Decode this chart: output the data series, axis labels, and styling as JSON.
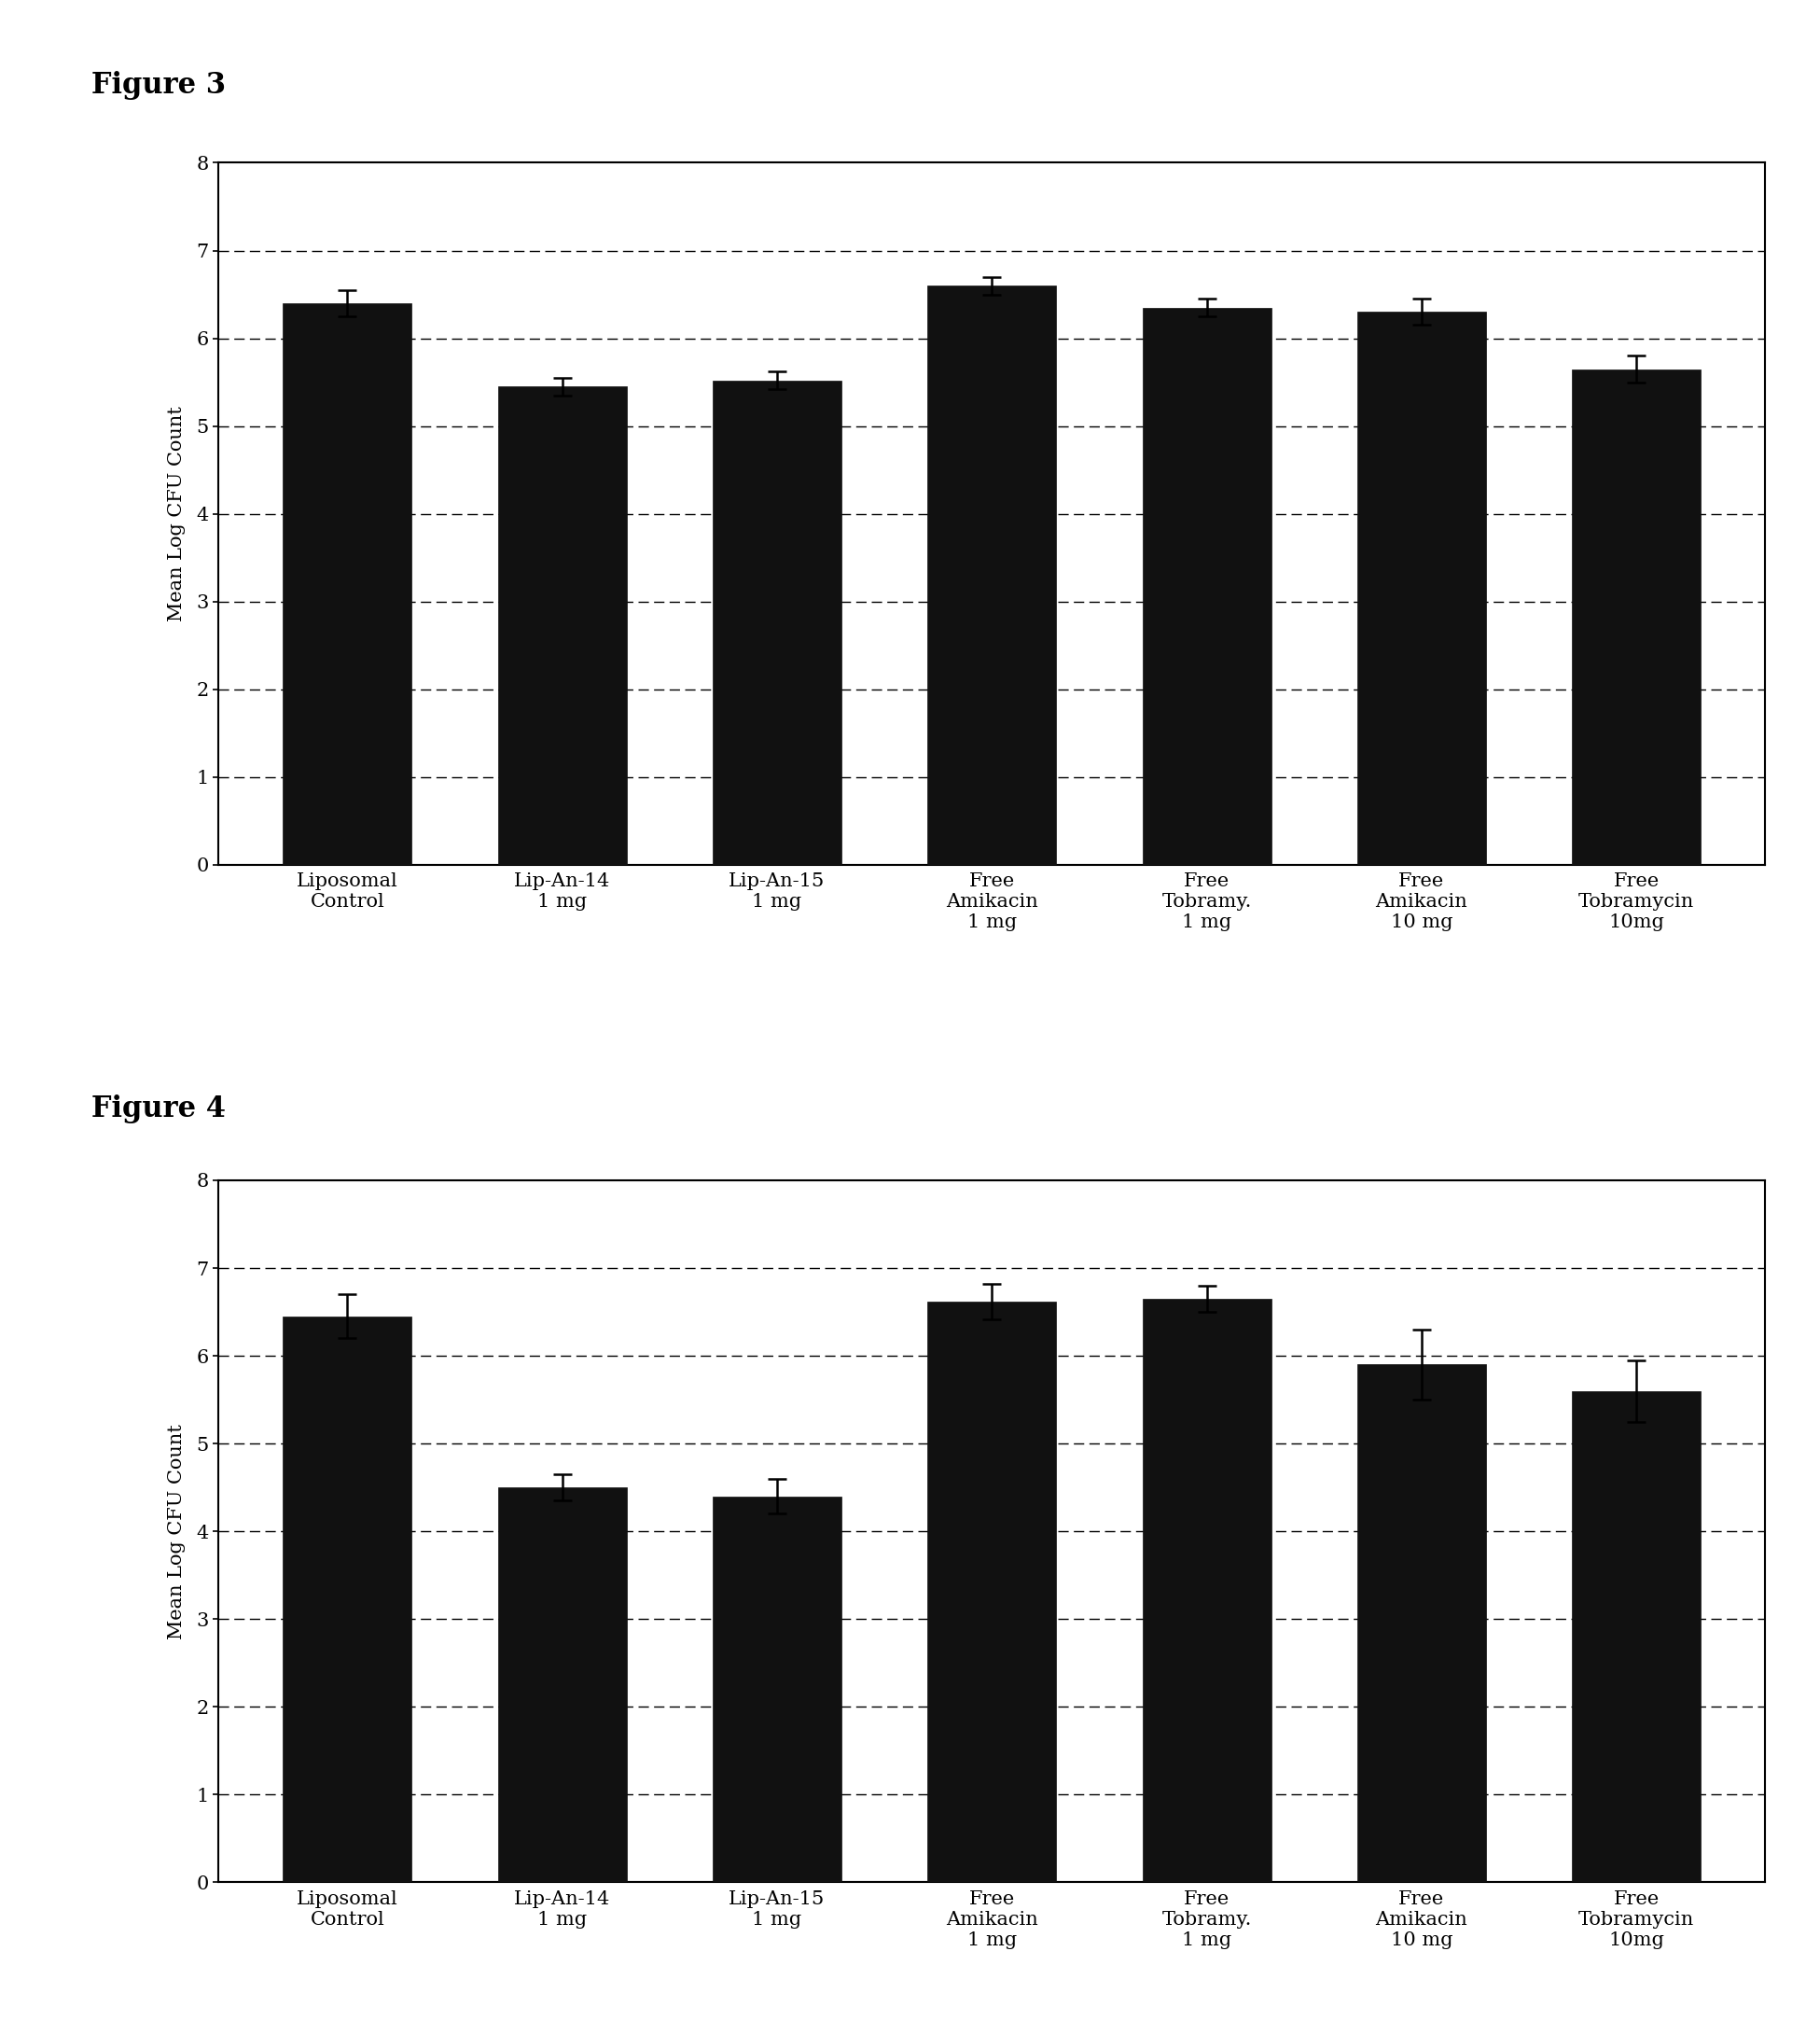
{
  "fig3_title": "Figure 3",
  "fig4_title": "Figure 4",
  "categories": [
    "Liposomal\nControl",
    "Lip-An-14\n1 mg",
    "Lip-An-15\n1 mg",
    "Free\nAmikacin\n1 mg",
    "Free\nTobramy.\n1 mg",
    "Free\nAmikacin\n10 mg",
    "Free\nTobramycin\n10mg"
  ],
  "fig3_values": [
    6.4,
    5.45,
    5.52,
    6.6,
    6.35,
    6.3,
    5.65
  ],
  "fig3_errors": [
    0.15,
    0.1,
    0.1,
    0.1,
    0.1,
    0.15,
    0.15
  ],
  "fig4_values": [
    6.45,
    4.5,
    4.4,
    6.62,
    6.65,
    5.9,
    5.6
  ],
  "fig4_errors": [
    0.25,
    0.15,
    0.2,
    0.2,
    0.15,
    0.4,
    0.35
  ],
  "bar_color": "#111111",
  "background_color": "#ffffff",
  "ylabel": "Mean Log CFU Count",
  "ylim": [
    0,
    8
  ],
  "yticks": [
    0,
    1,
    2,
    3,
    4,
    5,
    6,
    7,
    8
  ],
  "bar_width": 0.6,
  "label_fontsize": 15,
  "tick_fontsize": 15,
  "title_fontsize": 22
}
